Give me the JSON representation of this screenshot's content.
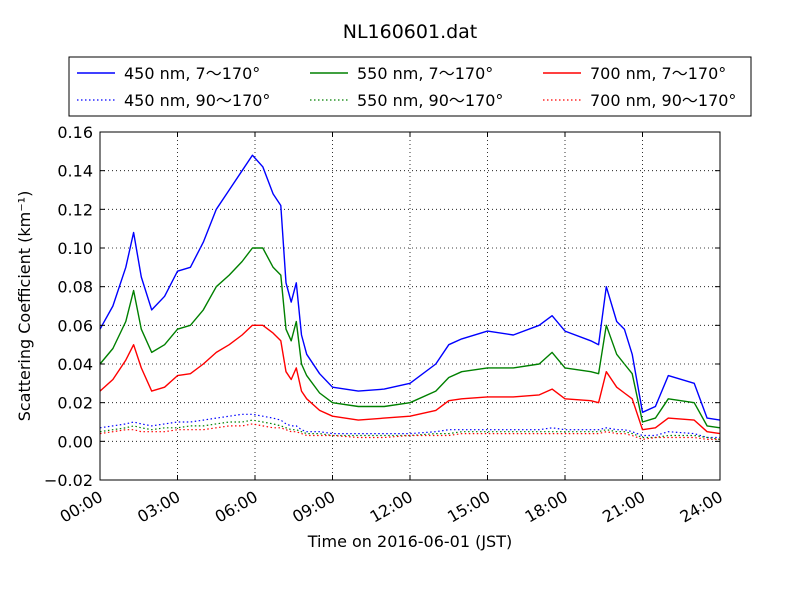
{
  "chart_data": {
    "type": "line",
    "title": "NL160601.dat",
    "xlabel": "Time on 2016-06-01 (JST)",
    "ylabel": "Scattering Coefficient (km⁻¹)",
    "xlim": [
      0,
      24
    ],
    "ylim": [
      -0.02,
      0.16
    ],
    "x_ticks": [
      "00:00",
      "03:00",
      "06:00",
      "09:00",
      "12:00",
      "15:00",
      "18:00",
      "21:00",
      "24:00"
    ],
    "y_ticks": [
      "−0.02",
      "0.00",
      "0.02",
      "0.04",
      "0.06",
      "0.08",
      "0.10",
      "0.12",
      "0.14",
      "0.16"
    ],
    "grid": true,
    "legend_position": "top",
    "x": [
      0,
      0.5,
      1,
      1.3,
      1.6,
      2,
      2.5,
      3,
      3.5,
      4,
      4.5,
      5,
      5.5,
      5.9,
      6.3,
      6.7,
      7,
      7.2,
      7.4,
      7.6,
      7.8,
      8,
      8.5,
      9,
      10,
      11,
      12,
      13,
      13.5,
      14,
      15,
      16,
      17,
      17.5,
      18,
      19,
      19.3,
      19.6,
      20,
      20.3,
      20.6,
      21,
      21.5,
      22,
      23,
      23.5,
      24
    ],
    "series": [
      {
        "name": "450 nm, 7～170°",
        "color": "#0000ff",
        "style": "solid",
        "values": [
          0.058,
          0.07,
          0.09,
          0.108,
          0.085,
          0.068,
          0.075,
          0.088,
          0.09,
          0.103,
          0.12,
          0.13,
          0.14,
          0.148,
          0.142,
          0.128,
          0.122,
          0.082,
          0.072,
          0.082,
          0.055,
          0.045,
          0.035,
          0.028,
          0.026,
          0.027,
          0.03,
          0.04,
          0.05,
          0.053,
          0.057,
          0.055,
          0.06,
          0.065,
          0.057,
          0.052,
          0.05,
          0.08,
          0.062,
          0.058,
          0.045,
          0.015,
          0.018,
          0.034,
          0.03,
          0.012,
          0.011
        ]
      },
      {
        "name": "450 nm, 90～170°",
        "color": "#0000ff",
        "style": "dotted",
        "values": [
          0.007,
          0.008,
          0.009,
          0.01,
          0.009,
          0.008,
          0.009,
          0.01,
          0.01,
          0.011,
          0.012,
          0.013,
          0.014,
          0.014,
          0.013,
          0.012,
          0.011,
          0.009,
          0.008,
          0.008,
          0.006,
          0.005,
          0.005,
          0.004,
          0.004,
          0.004,
          0.004,
          0.005,
          0.006,
          0.006,
          0.006,
          0.006,
          0.006,
          0.007,
          0.006,
          0.006,
          0.006,
          0.007,
          0.006,
          0.006,
          0.005,
          0.003,
          0.003,
          0.005,
          0.004,
          0.002,
          0.002
        ]
      },
      {
        "name": "550 nm, 7～170°",
        "color": "#008000",
        "style": "solid",
        "values": [
          0.04,
          0.048,
          0.062,
          0.078,
          0.058,
          0.046,
          0.05,
          0.058,
          0.06,
          0.068,
          0.08,
          0.086,
          0.093,
          0.1,
          0.1,
          0.09,
          0.086,
          0.058,
          0.052,
          0.062,
          0.04,
          0.034,
          0.025,
          0.02,
          0.018,
          0.018,
          0.02,
          0.026,
          0.033,
          0.036,
          0.038,
          0.038,
          0.04,
          0.046,
          0.038,
          0.036,
          0.035,
          0.06,
          0.045,
          0.04,
          0.035,
          0.01,
          0.012,
          0.022,
          0.02,
          0.008,
          0.007
        ]
      },
      {
        "name": "550 nm, 90～170°",
        "color": "#008000",
        "style": "dotted",
        "values": [
          0.005,
          0.006,
          0.007,
          0.008,
          0.007,
          0.006,
          0.007,
          0.007,
          0.008,
          0.008,
          0.009,
          0.01,
          0.01,
          0.011,
          0.01,
          0.009,
          0.008,
          0.007,
          0.006,
          0.006,
          0.005,
          0.004,
          0.004,
          0.003,
          0.003,
          0.003,
          0.003,
          0.004,
          0.004,
          0.005,
          0.005,
          0.005,
          0.005,
          0.005,
          0.005,
          0.005,
          0.005,
          0.006,
          0.005,
          0.005,
          0.004,
          0.002,
          0.002,
          0.003,
          0.003,
          0.002,
          0.001
        ]
      },
      {
        "name": "700 nm, 7～170°",
        "color": "#ff0000",
        "style": "solid",
        "values": [
          0.026,
          0.032,
          0.042,
          0.05,
          0.038,
          0.026,
          0.028,
          0.034,
          0.035,
          0.04,
          0.046,
          0.05,
          0.055,
          0.06,
          0.06,
          0.056,
          0.052,
          0.036,
          0.032,
          0.038,
          0.026,
          0.022,
          0.016,
          0.013,
          0.011,
          0.012,
          0.013,
          0.016,
          0.021,
          0.022,
          0.023,
          0.023,
          0.024,
          0.027,
          0.022,
          0.021,
          0.02,
          0.036,
          0.028,
          0.025,
          0.022,
          0.006,
          0.007,
          0.012,
          0.011,
          0.005,
          0.004
        ]
      },
      {
        "name": "700 nm, 90～170°",
        "color": "#ff0000",
        "style": "dotted",
        "values": [
          0.004,
          0.005,
          0.006,
          0.006,
          0.005,
          0.005,
          0.005,
          0.006,
          0.006,
          0.006,
          0.007,
          0.008,
          0.008,
          0.009,
          0.008,
          0.007,
          0.007,
          0.006,
          0.005,
          0.005,
          0.004,
          0.003,
          0.003,
          0.003,
          0.002,
          0.002,
          0.003,
          0.003,
          0.003,
          0.004,
          0.004,
          0.004,
          0.004,
          0.004,
          0.004,
          0.004,
          0.004,
          0.005,
          0.004,
          0.004,
          0.003,
          0.001,
          0.002,
          0.002,
          0.002,
          0.001,
          0.001
        ]
      }
    ]
  }
}
